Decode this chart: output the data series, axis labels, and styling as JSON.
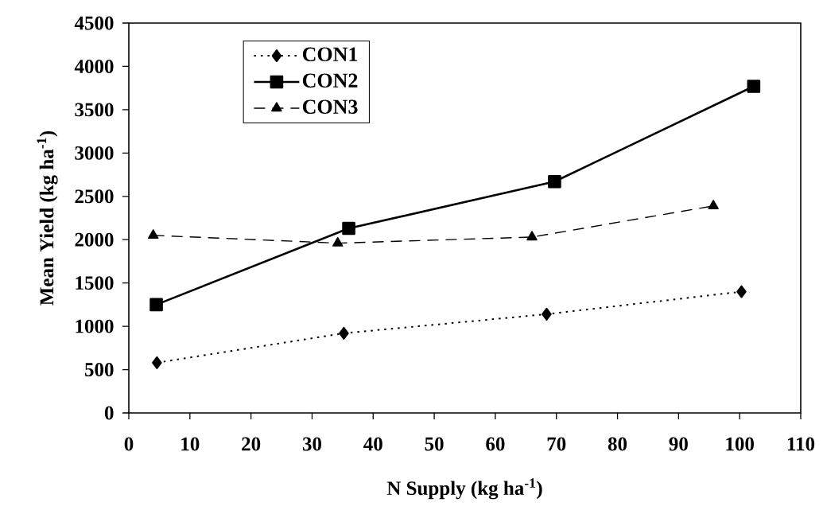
{
  "chart_data": {
    "type": "line",
    "xlabel": "N Supply (kg ha$^{-1}$)",
    "ylabel": "Mean Yield (kg ha$^{-1}$)",
    "xlim": [
      0,
      110
    ],
    "xticks": [
      0,
      10,
      20,
      30,
      40,
      50,
      60,
      70,
      80,
      90,
      100,
      110
    ],
    "ylim": [
      0,
      4500
    ],
    "yticks": [
      0,
      500,
      1000,
      1500,
      2000,
      2500,
      3000,
      3500,
      4000,
      4500
    ],
    "grid": false,
    "legend": "top left",
    "series": [
      {
        "name": "CON1",
        "color": "#000000",
        "marker": "diamond",
        "line_style": "dotted",
        "x": [
          4.6,
          35.2,
          68.4,
          100.3
        ],
        "values": [
          580,
          920,
          1140,
          1400
        ]
      },
      {
        "name": "CON2",
        "color": "#000000",
        "marker": "square",
        "line_style": "solid",
        "x": [
          4.5,
          36.0,
          69.7,
          102.3
        ],
        "values": [
          1250,
          2130,
          2670,
          3770
        ]
      },
      {
        "name": "CON3",
        "color": "#000000",
        "marker": "triangle",
        "line_style": "dashed",
        "x": [
          4.0,
          34.2,
          66.0,
          95.7
        ],
        "values": [
          2050,
          1960,
          2030,
          2390
        ]
      }
    ]
  }
}
